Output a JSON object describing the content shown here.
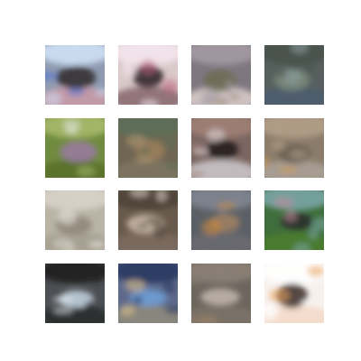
{
  "figure": {
    "rows": 4,
    "columns": 4,
    "tiles": [
      {
        "palette": {
          "base": "#8f9bb0",
          "top": "#cfe0f5",
          "mid": "#2e2a2c",
          "bottom": "#c89aa6",
          "accent": "#4b6fd6"
        }
      },
      {
        "palette": {
          "base": "#d9c9c9",
          "top": "#f4e6ee",
          "mid": "#2a1e25",
          "bottom": "#8b6b72",
          "accent": "#c06080"
        }
      },
      {
        "palette": {
          "base": "#7f7780",
          "top": "#a39aa2",
          "mid": "#6c6b52",
          "bottom": "#d7cbc9",
          "accent": "#9a8a7a"
        }
      },
      {
        "palette": {
          "base": "#57605e",
          "top": "#48514b",
          "mid": "#7a8a7a",
          "bottom": "#4d5d6e",
          "accent": "#8ca0a4"
        }
      },
      {
        "palette": {
          "base": "#6f8b3f",
          "top": "#a6b86a",
          "mid": "#9a7aa3",
          "bottom": "#59702a",
          "accent": "#e2e6df"
        }
      },
      {
        "palette": {
          "base": "#6e6552",
          "top": "#5d6e56",
          "mid": "#9b7f5c",
          "bottom": "#7c7360",
          "accent": "#b59b72"
        }
      },
      {
        "palette": {
          "base": "#7b6561",
          "top": "#9f7f76",
          "mid": "#201819",
          "bottom": "#c9c4c8",
          "accent": "#e1d8db"
        }
      },
      {
        "palette": {
          "base": "#8b7d6a",
          "top": "#b29f88",
          "mid": "#6a5f52",
          "bottom": "#a8a096",
          "accent": "#d09b5a"
        }
      },
      {
        "palette": {
          "base": "#b9b4a6",
          "top": "#d8d3c9",
          "mid": "#8d8578",
          "bottom": "#a5a092",
          "accent": "#f0ebe3"
        }
      },
      {
        "palette": {
          "base": "#6a5a4d",
          "top": "#4d4238",
          "mid": "#c9b8a8",
          "bottom": "#7b6b5e",
          "accent": "#e6dad0"
        }
      },
      {
        "palette": {
          "base": "#5c6066",
          "top": "#7f8590",
          "mid": "#a08060",
          "bottom": "#6a6a70",
          "accent": "#d08a3a"
        }
      },
      {
        "palette": {
          "base": "#3f6e3c",
          "top": "#7aa5a6",
          "mid": "#2a2a2a",
          "bottom": "#4b7b2e",
          "accent": "#c48aa0"
        }
      },
      {
        "palette": {
          "base": "#4c4f53",
          "top": "#1d1c1f",
          "mid": "#c7d6e3",
          "bottom": "#2a2b2e",
          "accent": "#e8eef2"
        }
      },
      {
        "palette": {
          "base": "#5e6a8b",
          "top": "#28375f",
          "mid": "#6fa0d8",
          "bottom": "#8d8a7b",
          "accent": "#e0c28a"
        }
      },
      {
        "palette": {
          "base": "#6d665e",
          "top": "#8b8175",
          "mid": "#c2b7ad",
          "bottom": "#7c7267",
          "accent": "#a48a6a"
        }
      },
      {
        "palette": {
          "base": "#f7f1ee",
          "top": "#ffffff",
          "mid": "#3a2a24",
          "bottom": "#f3d9c8",
          "accent": "#e7a35a"
        }
      }
    ]
  }
}
